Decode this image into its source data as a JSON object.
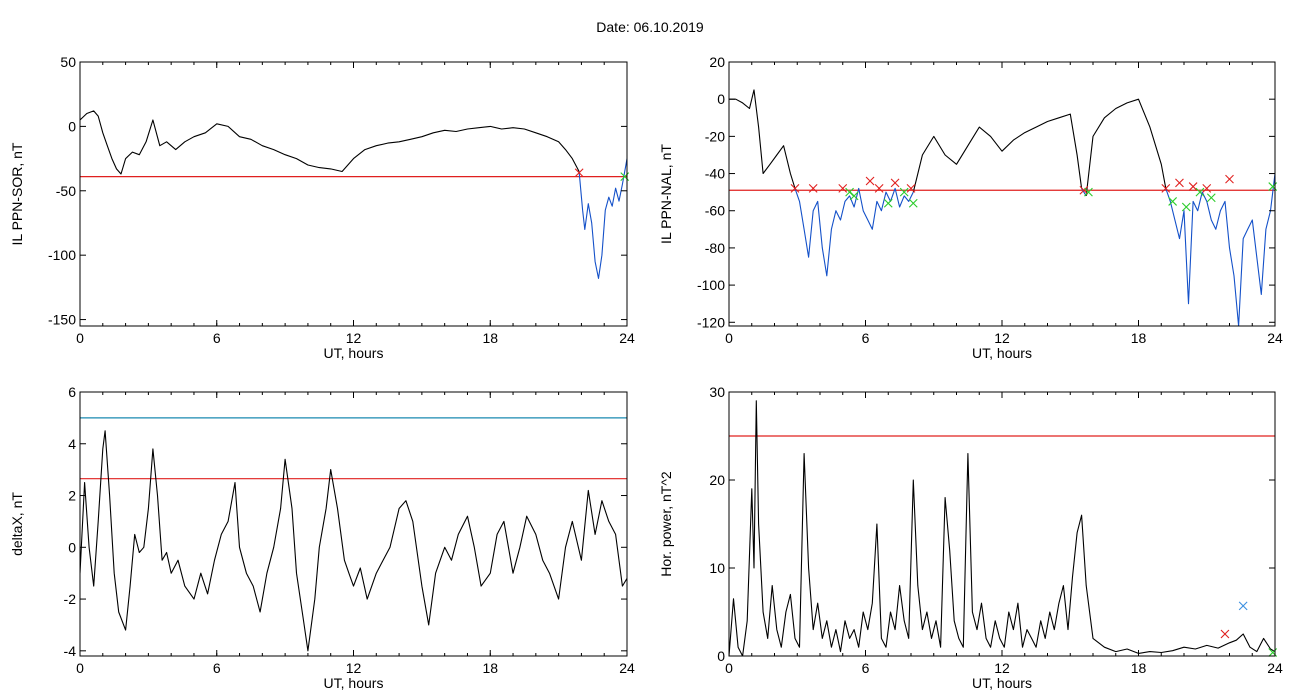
{
  "page": {
    "title": "Date:  06.10.2019"
  },
  "chart_data": [
    {
      "id": "ppn-sor",
      "type": "line",
      "xlabel": "UT, hours",
      "ylabel": "IL PPN-SOR, nT",
      "xlim": [
        0,
        24
      ],
      "ylim": [
        -155,
        50
      ],
      "xticks": [
        "0",
        "6",
        "12",
        "18",
        "24"
      ],
      "yticks": [
        "50",
        "0",
        "-50",
        "-100",
        "-150"
      ],
      "threshold_lines": [
        {
          "value": -39,
          "color": "#e0201f"
        }
      ],
      "series": [
        {
          "color": "#000000",
          "x": [
            0,
            0.3,
            0.6,
            0.8,
            1.0,
            1.2,
            1.4,
            1.6,
            1.8,
            2.0,
            2.3,
            2.6,
            2.9,
            3.2,
            3.5,
            3.8,
            4.2,
            4.6,
            5.0,
            5.5,
            6.0,
            6.5,
            7.0,
            7.5,
            8.0,
            8.5,
            9.0,
            9.5,
            10.0,
            10.5,
            11.0,
            11.5,
            12.0,
            12.5,
            13.0,
            13.5,
            14.0,
            14.5,
            15.0,
            15.5,
            16.0,
            16.5,
            17.0,
            17.5,
            18.0,
            18.5,
            19.0,
            19.5,
            20.0,
            20.5,
            21.0,
            21.3,
            21.6,
            21.9
          ],
          "y": [
            5,
            10,
            12,
            8,
            -5,
            -15,
            -25,
            -33,
            -37,
            -25,
            -20,
            -22,
            -12,
            5,
            -15,
            -12,
            -18,
            -12,
            -8,
            -5,
            2,
            0,
            -8,
            -10,
            -15,
            -18,
            -22,
            -25,
            -30,
            -32,
            -33,
            -35,
            -25,
            -18,
            -15,
            -13,
            -12,
            -10,
            -8,
            -5,
            -3,
            -4,
            -2,
            -1,
            0,
            -2,
            -1,
            -2,
            -5,
            -8,
            -12,
            -18,
            -25,
            -35
          ]
        },
        {
          "color": "#1451c9",
          "x": [
            21.9,
            22.05,
            22.15,
            22.3,
            22.45,
            22.6,
            22.75,
            22.9,
            23.05,
            23.2,
            23.35,
            23.5,
            23.65,
            23.8,
            23.95,
            24.0
          ],
          "y": [
            -35,
            -65,
            -80,
            -60,
            -75,
            -105,
            -118,
            -100,
            -65,
            -55,
            -62,
            -48,
            -58,
            -45,
            -30,
            -25
          ]
        }
      ],
      "markers": [
        {
          "x": 21.9,
          "y": -36,
          "color": "#e0201f"
        },
        {
          "x": 23.9,
          "y": -39,
          "color": "#2bcc2b"
        }
      ]
    },
    {
      "id": "ppn-nal",
      "type": "line",
      "xlabel": "UT, hours",
      "ylabel": "IL PPN-NAL, nT",
      "xlim": [
        0,
        24
      ],
      "ylim": [
        -122,
        20
      ],
      "xticks": [
        "0",
        "6",
        "12",
        "18",
        "24"
      ],
      "yticks": [
        "20",
        "0",
        "-20",
        "-40",
        "-60",
        "-80",
        "-100",
        "-120"
      ],
      "threshold_lines": [
        {
          "value": -49,
          "color": "#e0201f"
        }
      ],
      "series": [
        {
          "color": "#000000",
          "x": [
            0,
            0.3,
            0.6,
            0.9,
            1.1,
            1.3,
            1.5,
            1.8,
            2.1,
            2.4,
            2.7,
            2.9
          ],
          "y": [
            0,
            0,
            -2,
            -5,
            5,
            -15,
            -40,
            -35,
            -30,
            -25,
            -40,
            -48
          ]
        },
        {
          "color": "#1451c9",
          "x": [
            2.9,
            3.1,
            3.3,
            3.5,
            3.7,
            3.9,
            4.1,
            4.3,
            4.5,
            4.7,
            4.9,
            5.1,
            5.3,
            5.5,
            5.7,
            5.9,
            6.1,
            6.3,
            6.5,
            6.7,
            6.9,
            7.1,
            7.3,
            7.5,
            7.7,
            7.9,
            8.1
          ],
          "y": [
            -48,
            -55,
            -70,
            -85,
            -60,
            -55,
            -80,
            -95,
            -70,
            -60,
            -65,
            -55,
            -52,
            -58,
            -48,
            -60,
            -65,
            -70,
            -55,
            -60,
            -50,
            -55,
            -48,
            -58,
            -52,
            -55,
            -50
          ]
        },
        {
          "color": "#000000",
          "x": [
            8.1,
            8.5,
            9.0,
            9.5,
            10.0,
            10.5,
            11.0,
            11.5,
            12.0,
            12.5,
            13.0,
            13.5,
            14.0,
            14.5,
            15.0,
            15.3,
            15.5
          ],
          "y": [
            -50,
            -30,
            -20,
            -30,
            -35,
            -25,
            -15,
            -20,
            -28,
            -22,
            -18,
            -15,
            -12,
            -10,
            -8,
            -30,
            -48
          ]
        },
        {
          "color": "#1451c9",
          "x": [
            15.5,
            15.7
          ],
          "y": [
            -48,
            -52
          ]
        },
        {
          "color": "#000000",
          "x": [
            15.7,
            16.0,
            16.5,
            17.0,
            17.5,
            18.0,
            18.5,
            19.0,
            19.2
          ],
          "y": [
            -52,
            -20,
            -10,
            -5,
            -2,
            0,
            -15,
            -35,
            -48
          ]
        },
        {
          "color": "#1451c9",
          "x": [
            19.2,
            19.4,
            19.6,
            19.8,
            20.0,
            20.2,
            20.4,
            20.6,
            20.8,
            21.0,
            21.2,
            21.4,
            21.6,
            21.8,
            22.0,
            22.2,
            22.4,
            22.6,
            22.8,
            23.0,
            23.2,
            23.4,
            23.6,
            23.8,
            24.0
          ],
          "y": [
            -48,
            -55,
            -65,
            -75,
            -60,
            -110,
            -55,
            -60,
            -50,
            -55,
            -65,
            -70,
            -60,
            -55,
            -80,
            -95,
            -122,
            -75,
            -70,
            -65,
            -85,
            -105,
            -70,
            -60,
            -40
          ]
        }
      ],
      "markers": [
        {
          "x": 2.9,
          "y": -48,
          "color": "#e0201f"
        },
        {
          "x": 3.7,
          "y": -48,
          "color": "#e0201f"
        },
        {
          "x": 5.0,
          "y": -48,
          "color": "#e0201f"
        },
        {
          "x": 5.3,
          "y": -50,
          "color": "#2bcc2b"
        },
        {
          "x": 5.5,
          "y": -52,
          "color": "#2bcc2b"
        },
        {
          "x": 6.2,
          "y": -44,
          "color": "#e0201f"
        },
        {
          "x": 6.6,
          "y": -48,
          "color": "#e0201f"
        },
        {
          "x": 7.0,
          "y": -56,
          "color": "#2bcc2b"
        },
        {
          "x": 7.3,
          "y": -45,
          "color": "#e0201f"
        },
        {
          "x": 7.7,
          "y": -50,
          "color": "#2bcc2b"
        },
        {
          "x": 8.0,
          "y": -48,
          "color": "#e0201f"
        },
        {
          "x": 8.1,
          "y": -56,
          "color": "#2bcc2b"
        },
        {
          "x": 15.6,
          "y": -49,
          "color": "#e0201f"
        },
        {
          "x": 15.8,
          "y": -50,
          "color": "#2bcc2b"
        },
        {
          "x": 19.2,
          "y": -48,
          "color": "#e0201f"
        },
        {
          "x": 19.5,
          "y": -55,
          "color": "#2bcc2b"
        },
        {
          "x": 19.8,
          "y": -45,
          "color": "#e0201f"
        },
        {
          "x": 20.1,
          "y": -58,
          "color": "#2bcc2b"
        },
        {
          "x": 20.4,
          "y": -47,
          "color": "#e0201f"
        },
        {
          "x": 20.7,
          "y": -50,
          "color": "#2bcc2b"
        },
        {
          "x": 21.0,
          "y": -48,
          "color": "#e0201f"
        },
        {
          "x": 21.2,
          "y": -53,
          "color": "#2bcc2b"
        },
        {
          "x": 22.0,
          "y": -43,
          "color": "#e0201f"
        },
        {
          "x": 23.9,
          "y": -47,
          "color": "#2bcc2b"
        }
      ]
    },
    {
      "id": "deltax",
      "type": "line",
      "xlabel": "UT, hours",
      "ylabel": "deltaX, nT",
      "xlim": [
        0,
        24
      ],
      "ylim": [
        -4.2,
        6
      ],
      "xticks": [
        "0",
        "6",
        "12",
        "18",
        "24"
      ],
      "yticks": [
        "6",
        "4",
        "2",
        "0",
        "-2",
        "-4"
      ],
      "threshold_lines": [
        {
          "value": 5.0,
          "color": "#1a8ab0"
        },
        {
          "value": 2.65,
          "color": "#e0201f"
        }
      ],
      "series": [
        {
          "color": "#000000",
          "x": [
            0,
            0.2,
            0.4,
            0.6,
            0.8,
            1.0,
            1.1,
            1.3,
            1.5,
            1.7,
            2.0,
            2.2,
            2.4,
            2.6,
            2.8,
            3.0,
            3.2,
            3.4,
            3.6,
            3.8,
            4.0,
            4.3,
            4.6,
            5.0,
            5.3,
            5.6,
            5.9,
            6.2,
            6.5,
            6.8,
            7.0,
            7.3,
            7.6,
            7.9,
            8.2,
            8.5,
            8.8,
            9.0,
            9.3,
            9.5,
            9.8,
            10.0,
            10.3,
            10.5,
            10.8,
            11.0,
            11.3,
            11.6,
            11.8,
            12.0,
            12.3,
            12.6,
            13.0,
            13.3,
            13.6,
            14.0,
            14.3,
            14.6,
            15.0,
            15.3,
            15.6,
            16.0,
            16.3,
            16.6,
            17.0,
            17.3,
            17.6,
            18.0,
            18.3,
            18.6,
            19.0,
            19.3,
            19.6,
            20.0,
            20.3,
            20.6,
            21.0,
            21.3,
            21.6,
            22.0,
            22.3,
            22.6,
            22.9,
            23.2,
            23.5,
            23.8,
            24.0
          ],
          "y": [
            -1.0,
            2.5,
            0.0,
            -1.5,
            1.0,
            3.8,
            4.5,
            2.0,
            -1.0,
            -2.5,
            -3.2,
            -1.5,
            0.5,
            -0.2,
            0.0,
            1.5,
            3.8,
            2.0,
            -0.5,
            -0.2,
            -1.0,
            -0.5,
            -1.5,
            -2.0,
            -1.0,
            -1.8,
            -0.5,
            0.5,
            1.0,
            2.5,
            0.0,
            -1.0,
            -1.5,
            -2.5,
            -1.0,
            0.0,
            1.5,
            3.4,
            1.5,
            -1.0,
            -2.8,
            -4.0,
            -2.0,
            0.0,
            1.5,
            3.0,
            1.5,
            -0.5,
            -1.0,
            -1.5,
            -0.8,
            -2.0,
            -1.0,
            -0.5,
            0.0,
            1.5,
            1.8,
            1.0,
            -1.5,
            -3.0,
            -1.0,
            0.0,
            -0.5,
            0.5,
            1.2,
            0.0,
            -1.5,
            -1.0,
            0.5,
            1.0,
            -1.0,
            0.0,
            1.2,
            0.5,
            -0.5,
            -1.0,
            -2.0,
            0.0,
            1.0,
            -0.5,
            2.2,
            0.5,
            1.8,
            1.0,
            0.5,
            -1.5,
            -1.2
          ]
        }
      ],
      "markers": []
    },
    {
      "id": "hor-power",
      "type": "line",
      "xlabel": "UT, hours",
      "ylabel": "Hor. power, nT^2",
      "xlim": [
        0,
        24
      ],
      "ylim": [
        0,
        30
      ],
      "xticks": [
        "0",
        "6",
        "12",
        "18",
        "24"
      ],
      "yticks": [
        "30",
        "20",
        "10",
        "0"
      ],
      "threshold_lines": [
        {
          "value": 25,
          "color": "#e0201f"
        }
      ],
      "series": [
        {
          "color": "#000000",
          "x": [
            0,
            0.2,
            0.4,
            0.6,
            0.8,
            1.0,
            1.1,
            1.2,
            1.3,
            1.5,
            1.7,
            1.9,
            2.1,
            2.3,
            2.5,
            2.7,
            2.9,
            3.1,
            3.3,
            3.5,
            3.7,
            3.9,
            4.1,
            4.3,
            4.5,
            4.7,
            4.9,
            5.1,
            5.3,
            5.5,
            5.7,
            5.9,
            6.1,
            6.3,
            6.5,
            6.7,
            6.9,
            7.1,
            7.3,
            7.5,
            7.7,
            7.9,
            8.1,
            8.3,
            8.5,
            8.7,
            8.9,
            9.1,
            9.3,
            9.5,
            9.7,
            9.9,
            10.1,
            10.3,
            10.5,
            10.7,
            10.9,
            11.1,
            11.3,
            11.5,
            11.7,
            11.9,
            12.1,
            12.3,
            12.5,
            12.7,
            12.9,
            13.1,
            13.3,
            13.5,
            13.7,
            13.9,
            14.1,
            14.3,
            14.5,
            14.7,
            14.9,
            15.1,
            15.3,
            15.5,
            15.7,
            16.0,
            16.5,
            17.0,
            17.5,
            18.0,
            18.5,
            19.0,
            19.5,
            20.0,
            20.5,
            21.0,
            21.5,
            22.0,
            22.3,
            22.6,
            22.9,
            23.2,
            23.5,
            23.8,
            24.0
          ],
          "y": [
            0,
            6.5,
            1,
            0,
            4,
            19,
            10,
            29,
            15,
            5,
            2,
            8,
            3,
            1,
            5,
            7,
            2,
            1,
            23,
            10,
            3,
            6,
            2,
            4,
            1,
            3,
            0.5,
            4,
            2,
            3,
            1,
            5,
            3,
            6,
            15,
            2,
            1,
            5,
            3,
            8,
            4,
            2,
            20,
            8,
            3,
            5,
            2,
            4,
            1,
            18,
            12,
            4,
            2,
            1,
            23,
            5,
            3,
            6,
            2,
            1,
            4,
            2,
            1,
            5,
            3,
            6,
            1,
            3,
            2,
            1,
            4,
            2,
            5,
            3,
            6,
            8,
            3,
            9,
            14,
            16,
            8,
            2,
            1,
            0.5,
            0.8,
            0.3,
            0.5,
            0.4,
            0.6,
            1.0,
            0.8,
            1.2,
            0.9,
            1.5,
            1.8,
            2.5,
            1.0,
            0.5,
            2.0,
            0.8,
            0.5
          ]
        }
      ],
      "markers": [
        {
          "x": 21.8,
          "y": 2.5,
          "color": "#e0201f"
        },
        {
          "x": 22.6,
          "y": 5.7,
          "color": "#3b8fe0"
        },
        {
          "x": 23.9,
          "y": 0.4,
          "color": "#2bcc2b"
        }
      ]
    }
  ]
}
